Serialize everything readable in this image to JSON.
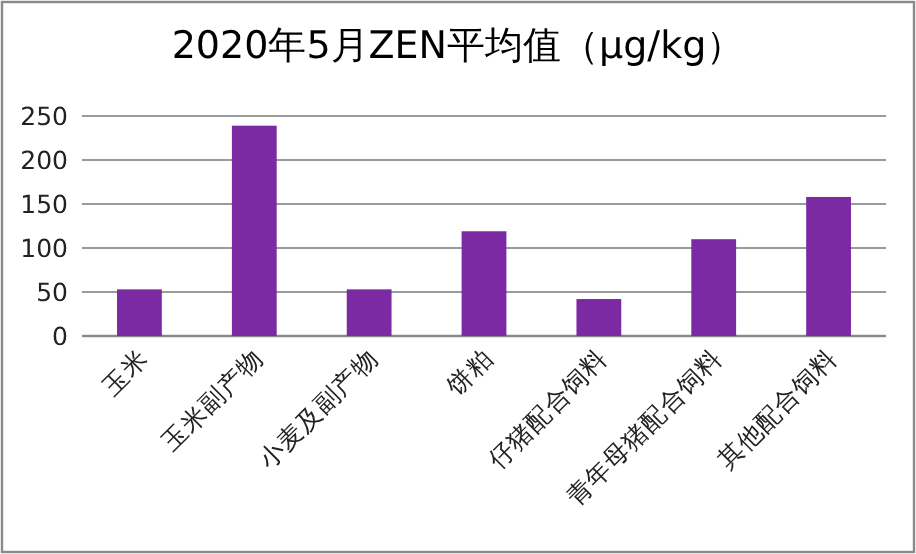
{
  "chart_data": {
    "type": "bar",
    "title": "2020年5月ZEN平均值（μg/kg）",
    "categories": [
      "玉米",
      "玉米副产物",
      "小麦及副产物",
      "饼粕",
      "仔猪配合饲料",
      "青年母猪配合饲料",
      "其他配合饲料"
    ],
    "values": [
      53,
      239,
      53,
      119,
      42,
      110,
      158
    ],
    "color": "#7b2aa3",
    "ylim": [
      0,
      250
    ],
    "yticks": [
      0,
      50,
      100,
      150,
      200,
      250
    ],
    "grid": "y"
  }
}
